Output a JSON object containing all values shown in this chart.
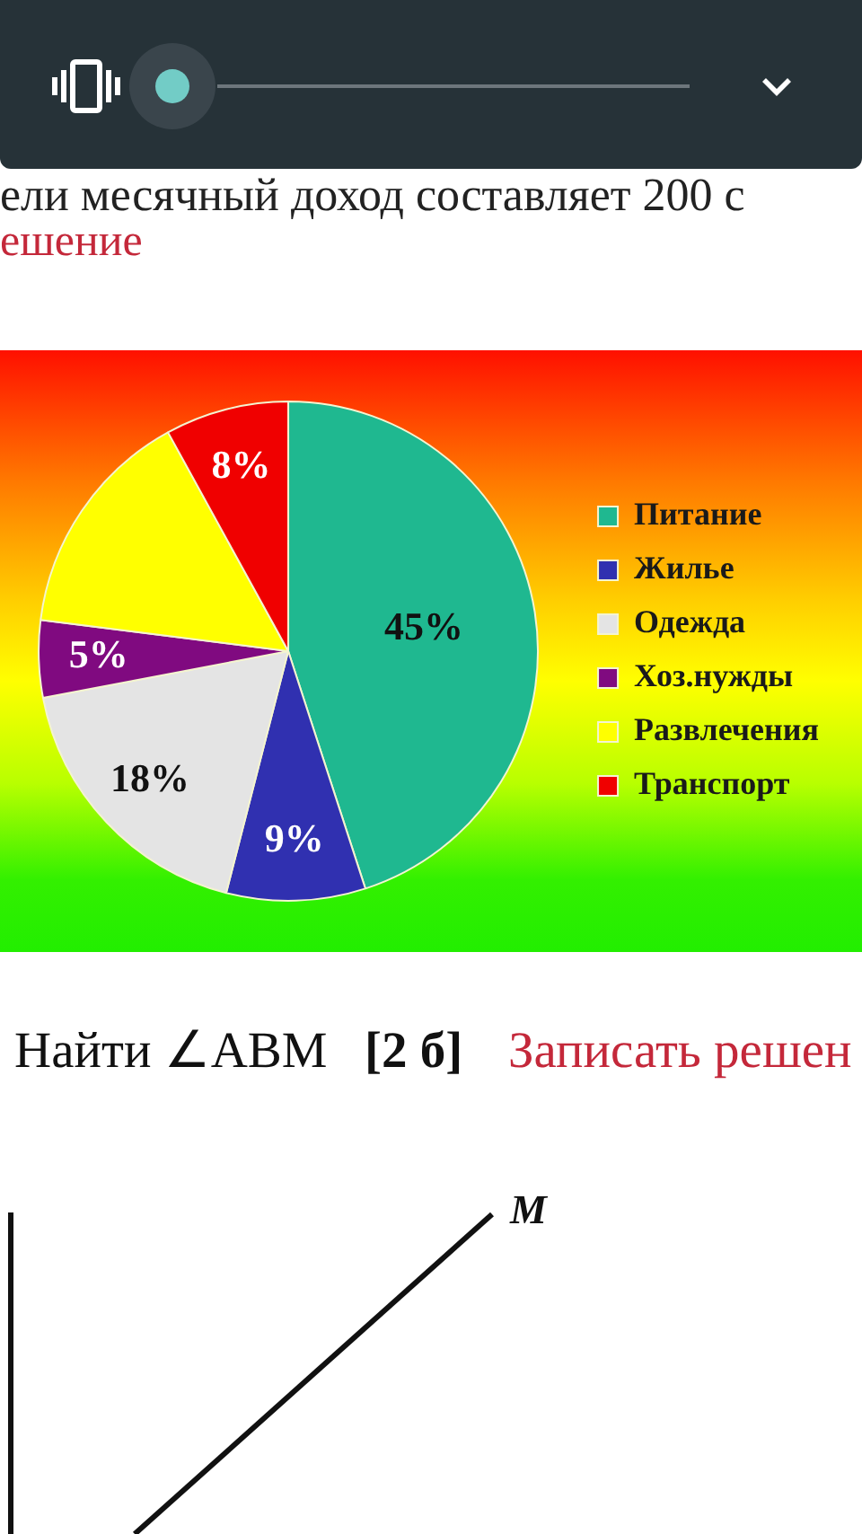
{
  "chart_data": {
    "type": "pie",
    "categories": [
      "Питание",
      "Жилье",
      "Одежда",
      "Хоз.нужды",
      "Развлечения",
      "Транспорт"
    ],
    "values": [
      45,
      9,
      18,
      5,
      15,
      8
    ],
    "colors": [
      "#1fb890",
      "#3030b0",
      "#e4e4e4",
      "#800a80",
      "#ffff00",
      "#f00000"
    ],
    "value_labels": [
      "45%",
      "9%",
      "18%",
      "5%",
      null,
      "8%"
    ],
    "legend": "right",
    "annotations": [
      "ели месячный доход составляет 200 с",
      "ешение",
      "Найти ∠ABM",
      "[2 б]",
      "Записать решен",
      "M"
    ]
  }
}
